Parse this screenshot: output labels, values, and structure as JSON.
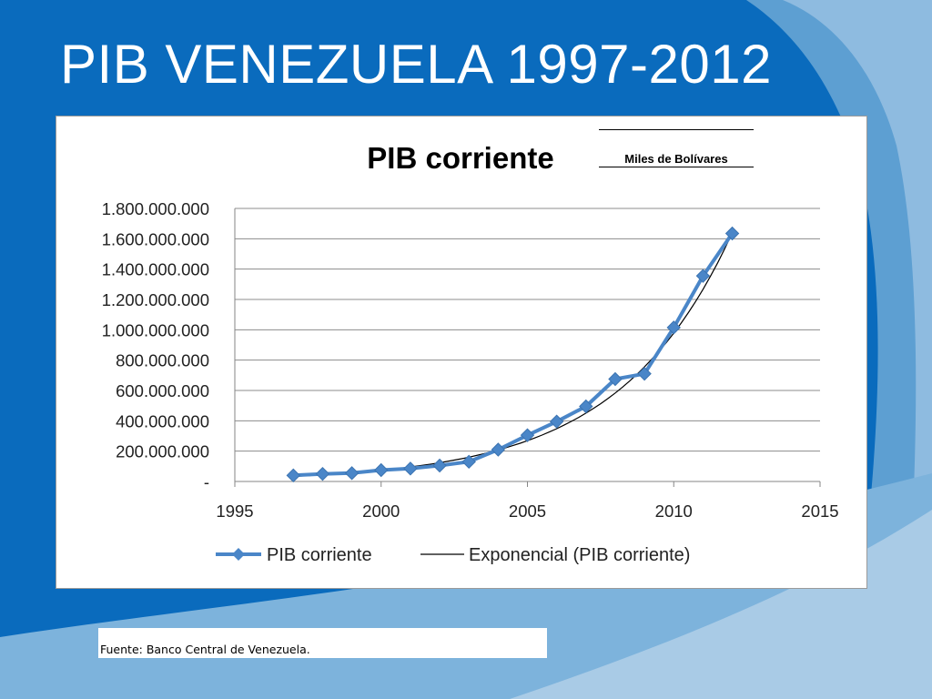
{
  "slide": {
    "title": "PIB VENEZUELA 1997-2012",
    "source": "Fuente: Banco Central de Venezuela."
  },
  "colors": {
    "background": "#0a6bbd",
    "series": "#4a86c8",
    "trend": "#000000"
  },
  "chart_data": {
    "type": "line",
    "title": "PIB corriente",
    "unit_note": "Miles de Bolívares",
    "xlabel": "",
    "ylabel": "",
    "xlim": [
      1995,
      2015
    ],
    "ylim": [
      0,
      1800000000
    ],
    "x_ticks": [
      1995,
      2000,
      2005,
      2010,
      2015
    ],
    "y_ticks": [
      0,
      200000000,
      400000000,
      600000000,
      800000000,
      1000000000,
      1200000000,
      1400000000,
      1600000000,
      1800000000
    ],
    "y_tick_labels": [
      "-",
      "200.000.000",
      "400.000.000",
      "600.000.000",
      "800.000.000",
      "1.000.000.000",
      "1.200.000.000",
      "1.400.000.000",
      "1.600.000.000",
      "1.800.000.000"
    ],
    "grid": true,
    "legend_position": "bottom",
    "series": [
      {
        "name": "PIB corriente",
        "marker": "diamond",
        "x": [
          1997,
          1998,
          1999,
          2000,
          2001,
          2002,
          2003,
          2004,
          2005,
          2006,
          2007,
          2008,
          2009,
          2010,
          2011,
          2012
        ],
        "y": [
          40000000,
          50000000,
          55000000,
          75000000,
          85000000,
          105000000,
          130000000,
          210000000,
          305000000,
          395000000,
          495000000,
          675000000,
          710000000,
          1015000000,
          1355000000,
          1635000000
        ]
      },
      {
        "name": "Exponencial (PIB corriente)",
        "marker": "none",
        "trend": "exponential",
        "x_range": [
          1997,
          2012
        ],
        "y_start": 34000000,
        "y_end": 1640000000
      }
    ]
  }
}
